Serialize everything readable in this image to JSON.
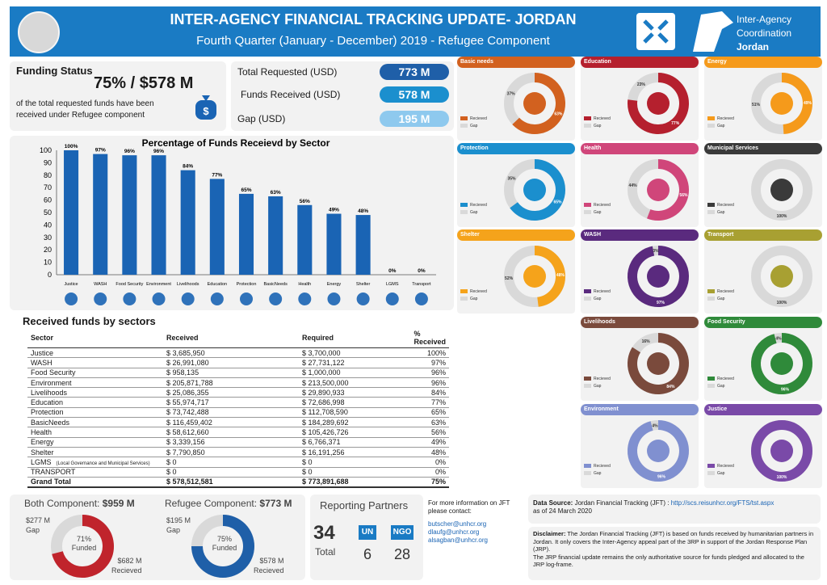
{
  "header": {
    "title": "INTER-AGENCY FINANCIAL TRACKING UPDATE- JORDAN",
    "subtitle": "Fourth Quarter (January - December) 2019 - Refugee Component",
    "right_line1": "Inter-Agency",
    "right_line2": "Coordination",
    "right_line3": "Jordan"
  },
  "funding_status": {
    "title": "Funding Status",
    "headline": "75% / $578 M",
    "desc_line1": "of the total requested funds have been",
    "desc_line2": "received under Refugee component",
    "total_requested_label": "Total Requested (USD)",
    "total_requested_value": "773  M",
    "funds_received_label": "Funds Received (USD)",
    "funds_received_value": "578  M",
    "gap_label": "Gap (USD)",
    "gap_value": "195  M"
  },
  "colors": {
    "blue": "#1a7bc4",
    "dark_blue": "#1f5fa8",
    "light_blue": "#8ec9ee",
    "received_red": "#c0242c"
  },
  "chart_data": {
    "type": "bar",
    "title": "Percentage of Funds Receievd by Sector",
    "categories": [
      "Justice",
      "WASH",
      "Food Security",
      "Environment",
      "Livelihoods",
      "Education",
      "Protection",
      "BasicNeeds",
      "Health",
      "Energy",
      "Shelter",
      "LGMS",
      "Transport"
    ],
    "values": [
      100,
      97,
      96,
      96,
      84,
      77,
      65,
      63,
      56,
      49,
      48,
      0,
      0
    ],
    "labels": [
      "100%",
      "97%",
      "96%",
      "96%",
      "84%",
      "77%",
      "65%",
      "63%",
      "56%",
      "49%",
      "48%",
      "0%",
      "0%"
    ],
    "yticks": [
      "100",
      "90",
      "80",
      "70",
      "60",
      "50",
      "40",
      "30",
      "20",
      "10",
      "0"
    ],
    "ylim": [
      0,
      100
    ],
    "color": "#1a64b4"
  },
  "table": {
    "title": "Received funds by sectors",
    "headers": [
      "Sector",
      "Received",
      "Required",
      "% Received"
    ],
    "rows": [
      [
        "Justice",
        "$ 3,685,950",
        "$ 3,700,000",
        "100%"
      ],
      [
        "WASH",
        "$ 26,991,080",
        "$ 27,731,122",
        "97%"
      ],
      [
        "Food Security",
        "$ 958,135",
        "$ 1,000,000",
        "96%"
      ],
      [
        "Environment",
        "$ 205,871,788",
        "$ 213,500,000",
        "96%"
      ],
      [
        "Livelihoods",
        "$ 25,086,355",
        "$ 29,890,933",
        "84%"
      ],
      [
        "Education",
        "$ 55,974,717",
        "$ 72,686,998",
        "77%"
      ],
      [
        "Protection",
        "$ 73,742,488",
        "$ 112,708,590",
        "65%"
      ],
      [
        "BasicNeeds",
        "$ 116,459,402",
        "$ 184,289,692",
        "63%"
      ],
      [
        "Health",
        "$ 58,612,660",
        "$ 105,426,726",
        "56%"
      ],
      [
        "Energy",
        "$ 3,339,156",
        "$ 6,766,371",
        "49%"
      ],
      [
        "Shelter",
        "$ 7,790,850",
        "$ 16,191,256",
        "48%"
      ],
      [
        "LGMS",
        "$ 0",
        "$ 0",
        "0%"
      ],
      [
        "TRANSPORT",
        "$ 0",
        "$ 0",
        "0%"
      ]
    ],
    "lgms_note": "(Local Governance and Municipal Services)",
    "total": [
      "Grand Total",
      "$ 578,512,581",
      "$ 773,891,688",
      "75%"
    ]
  },
  "donuts": [
    {
      "name": "Basic needs",
      "received": 63,
      "gap": 37,
      "recv_label": "63%",
      "gap_label": "37%",
      "color": "#d2611f"
    },
    {
      "name": "Education",
      "received": 77,
      "gap": 23,
      "recv_label": "77%",
      "gap_label": "23%",
      "color": "#b5202e"
    },
    {
      "name": "Energy",
      "received": 49,
      "gap": 51,
      "recv_label": "49%",
      "gap_label": "51%",
      "color": "#f59a1b"
    },
    {
      "name": "Protection",
      "received": 65,
      "gap": 35,
      "recv_label": "65%",
      "gap_label": "35%",
      "color": "#1b8fce"
    },
    {
      "name": "Health",
      "received": 56,
      "gap": 44,
      "recv_label": "56%",
      "gap_label": "44%",
      "color": "#d0467a"
    },
    {
      "name": "Municipal Services",
      "received": 0,
      "gap": 100,
      "recv_label": "",
      "gap_label": "100%",
      "color": "#3a3a3a"
    },
    {
      "name": "Shelter",
      "received": 48,
      "gap": 52,
      "recv_label": "48%",
      "gap_label": "52%",
      "color": "#f5a31b"
    },
    {
      "name": "WASH",
      "received": 97,
      "gap": 3,
      "recv_label": "97%",
      "gap_label": "3%",
      "color": "#5a2a7e"
    },
    {
      "name": "Transport",
      "received": 0,
      "gap": 100,
      "recv_label": "",
      "gap_label": "100%",
      "color": "#a8a032"
    },
    {
      "name": "Livelihoods",
      "received": 84,
      "gap": 16,
      "recv_label": "84%",
      "gap_label": "16%",
      "color": "#7a4a3c"
    },
    {
      "name": "Food Security",
      "received": 96,
      "gap": 4,
      "recv_label": "96%",
      "gap_label": "4%",
      "color": "#2f8a3a"
    },
    {
      "name": "Environment",
      "received": 96,
      "gap": 4,
      "recv_label": "96%",
      "gap_label": "4%",
      "color": "#8090d0"
    },
    {
      "name": "Justice",
      "received": 100,
      "gap": 0,
      "recv_label": "100%",
      "gap_label": "",
      "color": "#7a4aa8"
    }
  ],
  "legend": {
    "received": "Recieved",
    "gap": "Gap"
  },
  "both_component": {
    "title_prefix": "Both Component: ",
    "title_value": "$959 M",
    "gap_value": "$277 M",
    "gap_label": "Gap",
    "center_pct": "71%",
    "center_label": "Funded",
    "received_value": "$682 M",
    "received_label": "Recieved",
    "funded": 71
  },
  "refugee_component": {
    "title_prefix": "Refugee Component: ",
    "title_value": "$773 M",
    "gap_value": "$195 M",
    "gap_label": "Gap",
    "center_pct": "75%",
    "center_label": "Funded",
    "received_value": "$578 M",
    "received_label": "Recieved",
    "funded": 75
  },
  "partners": {
    "title": "Reporting Partners",
    "total_value": "34",
    "total_label": "Total",
    "un_label": "UN",
    "un_value": "6",
    "ngo_label": "NGO",
    "ngo_value": "28"
  },
  "contact": {
    "line1": "For more information on JFT",
    "line2": "please contact:",
    "emails": [
      "butscher@unhcr.org",
      "dlaufg@unhcr.org",
      "alsagban@unhcr.org"
    ]
  },
  "source": {
    "label": "Data Source:",
    "text": " Jordan Financial Tracking (JFT) : ",
    "link": "http://scs.reisunhcr.org/FTS/tst.aspx",
    "date": "as of 24 March 2020"
  },
  "disclaimer": {
    "label": "Disclaimer:",
    "text1": " The Jordan Financial Tracking (JFT) is based on funds received by humanitarian partners in Jordan. It only covers the Inter-Agency appeal part of the 3RP in support of the Jordan Response Plan (JRP).",
    "text2": "The JRP financial update remains the only authoritative source for funds pledged and allocated to the JRP log-frame."
  }
}
